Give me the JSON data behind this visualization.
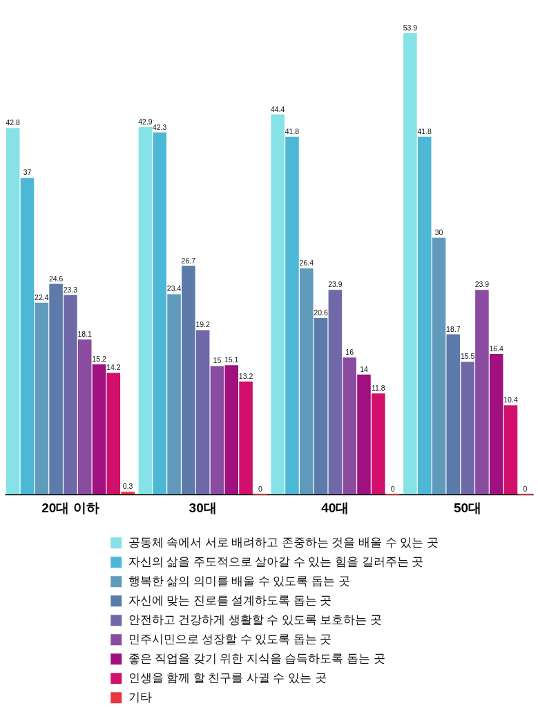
{
  "chart_data": {
    "type": "bar",
    "categories": [
      "20대 이하",
      "30대",
      "40대",
      "50대"
    ],
    "series": [
      {
        "name": "공동체 속에서 서로 배려하고 존중하는 것을  배울 수 있는 곳",
        "color": "#86e2e6",
        "values": [
          42.8,
          42.9,
          44.4,
          53.9
        ]
      },
      {
        "name": "자신의 삶을 주도적으로 살아갈 수 있는 힘을 길러주는 곳",
        "color": "#4db8d5",
        "values": [
          37,
          42.3,
          41.8,
          41.8
        ]
      },
      {
        "name": "행복한 삶의 의미를 배울 수 있도록 돕는 곳",
        "color": "#619bbb",
        "values": [
          22.4,
          23.4,
          26.4,
          30
        ]
      },
      {
        "name": "자신에 맞는 진로를 설계하도록 돕는 곳",
        "color": "#5c7bab",
        "values": [
          24.6,
          26.7,
          20.6,
          18.7
        ]
      },
      {
        "name": "안전하고 건강하게 생활할 수 있도록 보호하는 곳",
        "color": "#6f69a9",
        "values": [
          23.3,
          19.2,
          23.9,
          15.5
        ]
      },
      {
        "name": "민주시민으로 성장할 수 있도록 돕는 곳",
        "color": "#8a4ca1",
        "values": [
          18.1,
          15,
          16,
          23.9
        ]
      },
      {
        "name": "좋은 직업을 갖기 위한 지식을 습득하도록 돕는 곳",
        "color": "#a0107f",
        "values": [
          15.2,
          15.1,
          14,
          16.4
        ]
      },
      {
        "name": "인생을 함께 할 친구를 사귈 수 있는 곳",
        "color": "#d0106a",
        "values": [
          14.2,
          13.2,
          11.8,
          10.4
        ]
      },
      {
        "name": "기타",
        "color": "#e8383f",
        "values": [
          0.3,
          0,
          0,
          0
        ]
      }
    ],
    "tick_labels": "x",
    "data_labels": true,
    "legend": "bottom"
  }
}
